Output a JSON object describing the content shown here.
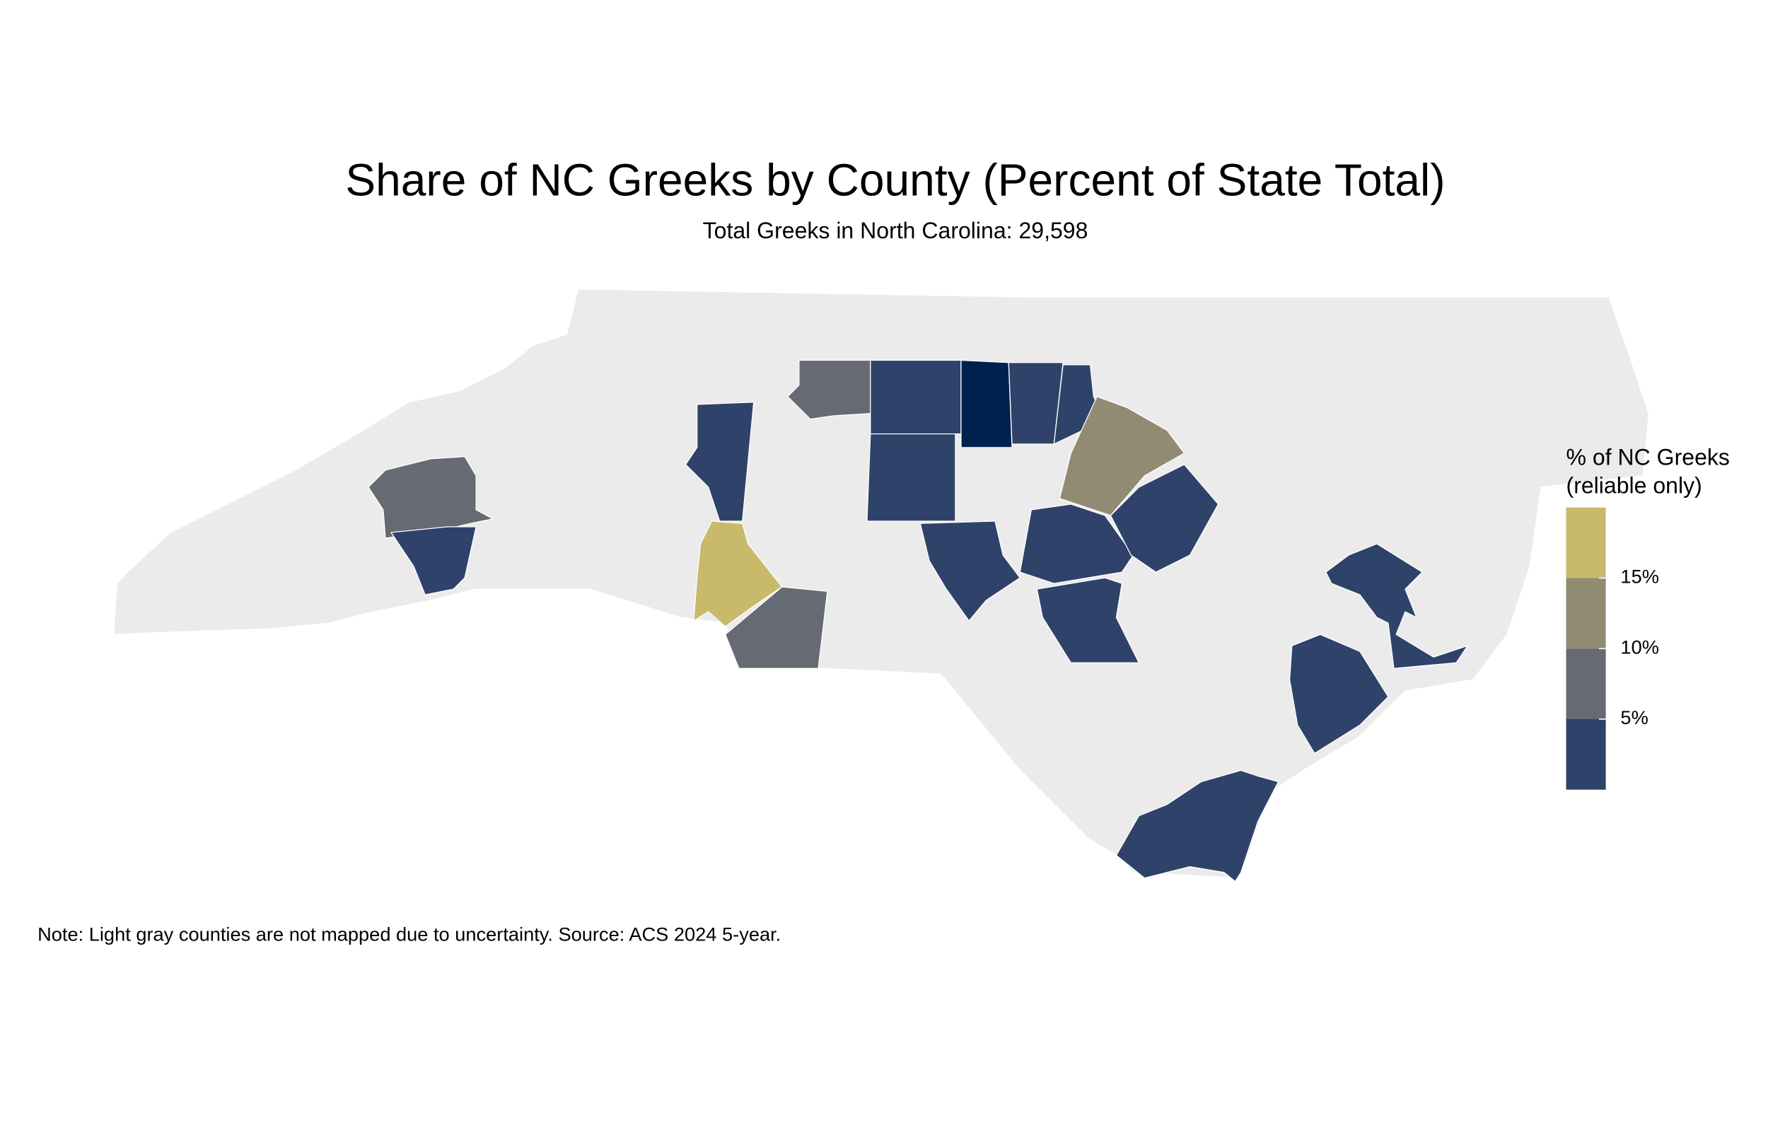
{
  "chart_data": {
    "type": "choropleth",
    "title": "Share of NC Greeks by County (Percent of State Total)",
    "subtitle": "Total Greeks in North Carolina: 29,598",
    "note": "Note: Light gray counties are not mapped due to uncertainty. Source: ACS 2024 5-year.",
    "legend": {
      "title": [
        "% of NC Greeks",
        "(reliable only)"
      ],
      "lim": [
        0,
        20
      ],
      "ticks": [
        {
          "value": 5,
          "label": "5%"
        },
        {
          "value": 10,
          "label": "10%"
        },
        {
          "value": 15,
          "label": "15%"
        }
      ],
      "colors": [
        "#2f4269",
        "#666a72",
        "#918b73",
        "#c9b96b"
      ]
    },
    "unmapped_color": "#ebebeb",
    "counties": [
      {
        "value": 7,
        "color": "#666a72"
      },
      {
        "value": 3,
        "color": "#2f4269"
      },
      {
        "value": 3,
        "color": "#2f4269"
      },
      {
        "value": 8,
        "color": "#666a72"
      },
      {
        "value": 3,
        "color": "#2f4269"
      },
      {
        "value": 1,
        "color": "#00204d"
      },
      {
        "value": 3,
        "color": "#2f4269"
      },
      {
        "value": 2,
        "color": "#2f4269"
      },
      {
        "value": 12,
        "color": "#918b73"
      },
      {
        "value": 3,
        "color": "#2f4269"
      },
      {
        "value": 17,
        "color": "#c9b96b"
      },
      {
        "value": 8,
        "color": "#666a72"
      },
      {
        "value": 3,
        "color": "#2f4269"
      },
      {
        "value": 3,
        "color": "#2f4269"
      },
      {
        "value": 4,
        "color": "#2f4269"
      },
      {
        "value": 3,
        "color": "#2f4269"
      },
      {
        "value": 3,
        "color": "#2f4269"
      },
      {
        "value": 3,
        "color": "#2f4269"
      },
      {
        "value": 3,
        "color": "#2f4269"
      }
    ]
  }
}
